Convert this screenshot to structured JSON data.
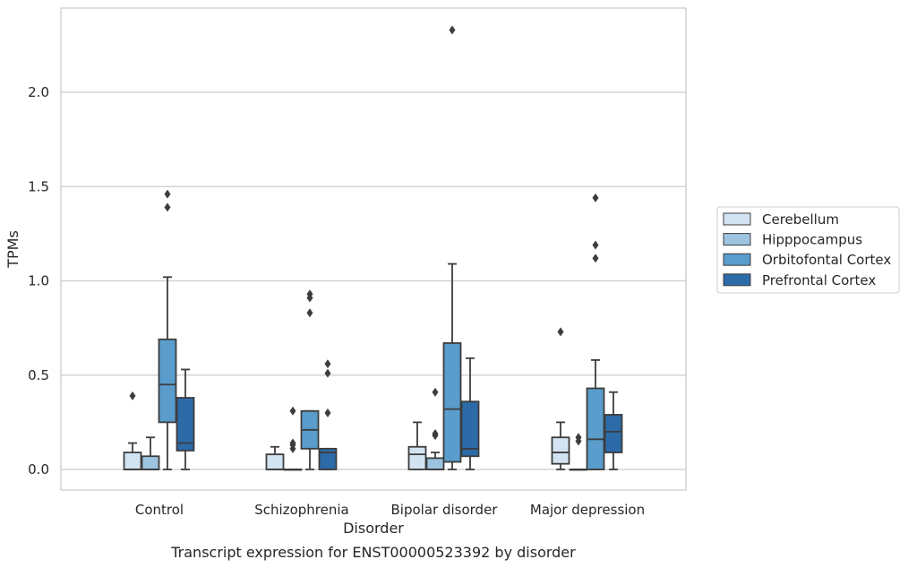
{
  "chart_data": {
    "type": "box",
    "xlabel": "Disorder",
    "ylabel": "TPMs",
    "caption": "Transcript expression for ENST00000523392 by disorder",
    "ylim": [
      -0.11,
      2.45
    ],
    "yticks": [
      0.0,
      0.5,
      1.0,
      1.5,
      2.0
    ],
    "ytick_labels": [
      "0.0",
      "0.5",
      "1.0",
      "1.5",
      "2.0"
    ],
    "grid": "horizontal",
    "legend_position": "right",
    "categories": [
      "Control",
      "Schizophrenia",
      "Bipolar disorder",
      "Major depression"
    ],
    "series": [
      {
        "name": "Cerebellum",
        "color": "#d3e3f2",
        "boxes": [
          {
            "whislo": 0.0,
            "q1": 0.0,
            "med": 0.0,
            "q3": 0.09,
            "whishi": 0.14,
            "fliers": [
              0.39
            ]
          },
          {
            "whislo": 0.0,
            "q1": 0.0,
            "med": 0.0,
            "q3": 0.08,
            "whishi": 0.12,
            "fliers": []
          },
          {
            "whislo": 0.0,
            "q1": 0.0,
            "med": 0.08,
            "q3": 0.12,
            "whishi": 0.25,
            "fliers": []
          },
          {
            "whislo": 0.0,
            "q1": 0.03,
            "med": 0.09,
            "q3": 0.17,
            "whishi": 0.25,
            "fliers": [
              0.73
            ]
          }
        ]
      },
      {
        "name": "Hipppocampus",
        "color": "#9cc4e0",
        "boxes": [
          {
            "whislo": 0.0,
            "q1": 0.0,
            "med": 0.0,
            "q3": 0.07,
            "whishi": 0.17,
            "fliers": []
          },
          {
            "whislo": 0.0,
            "q1": 0.0,
            "med": 0.0,
            "q3": 0.0,
            "whishi": 0.0,
            "fliers": [
              0.11,
              0.13,
              0.14,
              0.31
            ]
          },
          {
            "whislo": 0.0,
            "q1": 0.0,
            "med": 0.0,
            "q3": 0.06,
            "whishi": 0.09,
            "fliers": [
              0.18,
              0.19,
              0.41
            ]
          },
          {
            "whislo": 0.0,
            "q1": 0.0,
            "med": 0.0,
            "q3": 0.0,
            "whishi": 0.0,
            "fliers": [
              0.15,
              0.17
            ]
          }
        ]
      },
      {
        "name": "Orbitofontal Cortex",
        "color": "#5a9ccb",
        "boxes": [
          {
            "whislo": 0.0,
            "q1": 0.25,
            "med": 0.45,
            "q3": 0.69,
            "whishi": 1.02,
            "fliers": [
              1.39,
              1.46
            ]
          },
          {
            "whislo": 0.0,
            "q1": 0.11,
            "med": 0.21,
            "q3": 0.31,
            "whishi": 0.31,
            "fliers": [
              0.83,
              0.91,
              0.93
            ]
          },
          {
            "whislo": 0.0,
            "q1": 0.04,
            "med": 0.32,
            "q3": 0.67,
            "whishi": 1.09,
            "fliers": [
              2.33
            ]
          },
          {
            "whislo": 0.0,
            "q1": 0.0,
            "med": 0.16,
            "q3": 0.43,
            "whishi": 0.58,
            "fliers": [
              1.12,
              1.19,
              1.44
            ]
          }
        ]
      },
      {
        "name": "Prefrontal Cortex",
        "color": "#2c6aa8",
        "boxes": [
          {
            "whislo": 0.0,
            "q1": 0.1,
            "med": 0.14,
            "q3": 0.38,
            "whishi": 0.53,
            "fliers": []
          },
          {
            "whislo": 0.0,
            "q1": 0.0,
            "med": 0.09,
            "q3": 0.11,
            "whishi": 0.11,
            "fliers": [
              0.3,
              0.51,
              0.56
            ]
          },
          {
            "whislo": 0.0,
            "q1": 0.07,
            "med": 0.11,
            "q3": 0.36,
            "whishi": 0.59,
            "fliers": []
          },
          {
            "whislo": 0.0,
            "q1": 0.09,
            "med": 0.2,
            "q3": 0.29,
            "whishi": 0.41,
            "fliers": []
          }
        ]
      }
    ]
  }
}
